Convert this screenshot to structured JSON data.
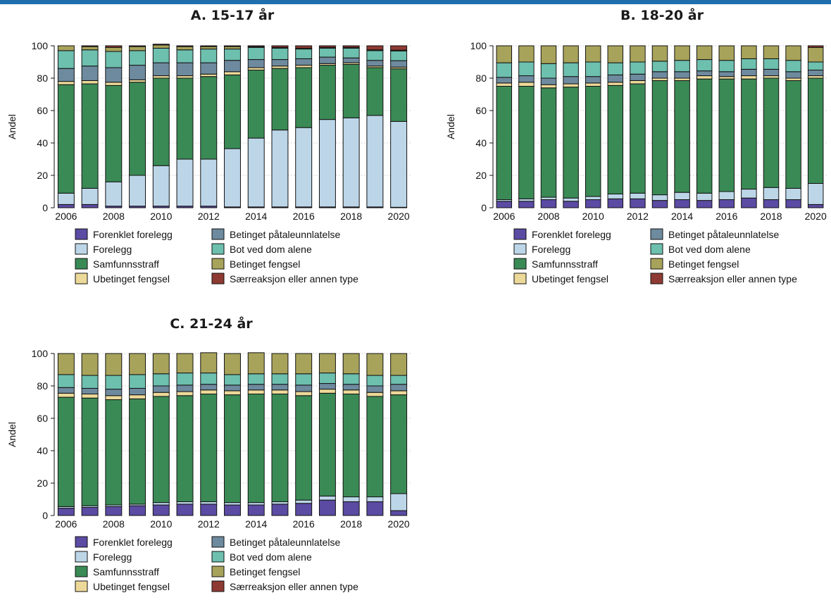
{
  "colors": {
    "topbar": "#1f6fae",
    "series": [
      "#5b4ba3",
      "#bcd6e8",
      "#3a8a55",
      "#ecd999",
      "#6e8a9e",
      "#6dbfae",
      "#a8a35a",
      "#8e3a32"
    ]
  },
  "legend_labels": [
    "Forenklet forelegg",
    "Betinget påtaleunnlatelse",
    "Forelegg",
    "Bot ved dom alene",
    "Samfunnsstraff",
    "Betinget fengsel",
    "Ubetinget fengsel",
    "Særreaksjon eller annen type"
  ],
  "chart_data": [
    {
      "type": "bar",
      "stacked": true,
      "title": "A. 15-17 år",
      "ylabel": "Andel",
      "ylim": [
        0,
        100
      ],
      "yticks": [
        "0",
        "20",
        "40",
        "60",
        "80",
        "100"
      ],
      "xtick_labels": [
        "2006",
        "2008",
        "2010",
        "2012",
        "2014",
        "2016",
        "2018",
        "2020"
      ],
      "grid": "horizontal dotted",
      "categories": [
        2006,
        2007,
        2008,
        2009,
        2010,
        2011,
        2012,
        2013,
        2014,
        2015,
        2016,
        2017,
        2018,
        2019,
        2020
      ],
      "series": [
        {
          "name": "Forenklet forelegg",
          "values": [
            2,
            2,
            1,
            1,
            1,
            1,
            1,
            0.5,
            0.5,
            0.5,
            0.5,
            0.5,
            0.5,
            0.5,
            0.3
          ]
        },
        {
          "name": "Betinget påtaleunnlatelse",
          "values": [
            7,
            10,
            15,
            19,
            25,
            29,
            29,
            36,
            42.5,
            47.5,
            49,
            54,
            55,
            56.5,
            53
          ]
        },
        {
          "name": "Forelegg",
          "values": [
            67,
            64.5,
            59.5,
            57.5,
            54,
            50,
            51,
            45.5,
            42,
            38,
            37,
            33.5,
            33,
            29.5,
            32.5
          ]
        },
        {
          "name": "Bot ved dom alene",
          "values": [
            2,
            2,
            2,
            1.5,
            1.5,
            1.5,
            1.5,
            2,
            1.5,
            1.5,
            1.5,
            1,
            1,
            1,
            1
          ]
        },
        {
          "name": "Samfunnsstraff",
          "values": [
            8,
            9,
            9,
            9,
            8,
            8,
            7,
            7,
            5,
            4,
            4,
            4,
            3,
            3.5,
            4
          ]
        },
        {
          "name": "Betinget fengsel",
          "values": [
            11,
            10,
            10,
            9,
            9,
            8,
            8.5,
            7,
            7.5,
            7,
            6,
            5.5,
            6,
            6,
            6
          ]
        },
        {
          "name": "Ubetinget fengsel",
          "values": [
            3,
            2,
            2.5,
            2.5,
            2,
            2,
            1.5,
            1.5,
            0.5,
            0.5,
            0.5,
            0.5,
            0.5,
            0.5,
            0.5
          ]
        },
        {
          "name": "Særreaksjon eller annen type",
          "values": [
            0,
            0.5,
            1,
            0.5,
            0.5,
            0.5,
            0.5,
            0.5,
            0.5,
            1,
            1.5,
            1,
            1,
            2.5,
            2.7
          ]
        }
      ]
    },
    {
      "type": "bar",
      "stacked": true,
      "title": "B. 18-20 år",
      "ylabel": "Andel",
      "ylim": [
        0,
        100
      ],
      "yticks": [
        "0",
        "20",
        "40",
        "60",
        "80",
        "100"
      ],
      "xtick_labels": [
        "2006",
        "2008",
        "2010",
        "2012",
        "2014",
        "2016",
        "2018",
        "2020"
      ],
      "grid": "horizontal dotted",
      "categories": [
        2006,
        2007,
        2008,
        2009,
        2010,
        2011,
        2012,
        2013,
        2014,
        2015,
        2016,
        2017,
        2018,
        2019,
        2020
      ],
      "series": [
        {
          "name": "Forenklet forelegg",
          "values": [
            4,
            4,
            5,
            4,
            5,
            5.5,
            5.5,
            4.5,
            5,
            4.5,
            5,
            6,
            5,
            5,
            2
          ]
        },
        {
          "name": "Betinget påtaleunnlatelse",
          "values": [
            1,
            1.5,
            1.5,
            2,
            2,
            3,
            3.5,
            3.5,
            4.5,
            4.5,
            5,
            5.5,
            7.5,
            7,
            13
          ]
        },
        {
          "name": "Forelegg",
          "values": [
            70,
            69.5,
            67.5,
            68.5,
            68,
            67,
            67.5,
            70.5,
            69,
            70.5,
            69.5,
            68,
            67.5,
            66.5,
            65
          ]
        },
        {
          "name": "Bot ved dom alene",
          "values": [
            2,
            2.5,
            2,
            2,
            2,
            2,
            2,
            1.5,
            1.5,
            2,
            1.5,
            2,
            1.5,
            1.5,
            1.5
          ]
        },
        {
          "name": "Samfunnsstraff",
          "values": [
            3.5,
            4,
            4,
            4.5,
            4,
            4.5,
            4,
            4,
            4,
            3,
            3,
            4,
            4,
            4,
            3.5
          ]
        },
        {
          "name": "Betinget fengsel",
          "values": [
            9,
            8.5,
            9,
            8.5,
            9,
            7.5,
            7.5,
            6.5,
            7,
            7,
            7,
            6.5,
            6.5,
            7,
            5
          ]
        },
        {
          "name": "Ubetinget fengsel",
          "values": [
            10.5,
            10,
            11,
            10.5,
            10,
            10.5,
            10,
            9.5,
            9,
            8.5,
            9,
            8,
            8,
            9,
            9
          ]
        },
        {
          "name": "Særreaksjon eller annen type",
          "values": [
            0,
            0,
            0,
            0,
            0,
            0,
            0,
            0,
            0,
            0,
            0,
            0,
            0,
            0,
            1
          ]
        }
      ]
    },
    {
      "type": "bar",
      "stacked": true,
      "title": "C. 21-24 år",
      "ylabel": "Andel",
      "ylim": [
        0,
        100
      ],
      "yticks": [
        "0",
        "20",
        "40",
        "60",
        "80",
        "100"
      ],
      "xtick_labels": [
        "2006",
        "2008",
        "2010",
        "2012",
        "2014",
        "2016",
        "2018",
        "2020"
      ],
      "grid": "horizontal dotted",
      "categories": [
        2006,
        2007,
        2008,
        2009,
        2010,
        2011,
        2012,
        2013,
        2014,
        2015,
        2016,
        2017,
        2018,
        2019,
        2020
      ],
      "series": [
        {
          "name": "Forenklet forelegg",
          "values": [
            4.5,
            5,
            5.5,
            6,
            6.5,
            7,
            7,
            6.5,
            6.5,
            7,
            7.5,
            9.5,
            8.5,
            8.5,
            3
          ]
        },
        {
          "name": "Betinget påtaleunnlatelse",
          "values": [
            1,
            1,
            1,
            1,
            1.5,
            1.5,
            1.5,
            1.5,
            1.5,
            1.5,
            2,
            2.5,
            3,
            3,
            10.5
          ]
        },
        {
          "name": "Forelegg",
          "values": [
            67.5,
            66.5,
            65,
            65,
            65.5,
            65.5,
            66.5,
            66.5,
            67,
            66.5,
            64.5,
            63.5,
            63.5,
            62,
            61
          ]
        },
        {
          "name": "Bot ved dom alene",
          "values": [
            2.5,
            2.5,
            2.5,
            2.5,
            2.5,
            2.5,
            2.5,
            2.5,
            2.5,
            2.5,
            2.5,
            2.5,
            2.5,
            2.5,
            2.5
          ]
        },
        {
          "name": "Samfunnsstraff",
          "values": [
            3.5,
            3.5,
            4,
            4,
            4,
            4,
            3.5,
            3.5,
            3.5,
            3.5,
            4,
            3.5,
            3.5,
            4,
            4
          ]
        },
        {
          "name": "Betinget fengsel",
          "values": [
            8,
            8,
            8.5,
            8.5,
            7.5,
            7.5,
            7,
            6.5,
            6.5,
            6.5,
            7,
            6.5,
            6.5,
            6.5,
            5.5
          ]
        },
        {
          "name": "Ubetinget fengsel",
          "values": [
            13,
            13.5,
            13.5,
            13,
            12.5,
            12,
            12.5,
            13,
            13,
            12.5,
            12.5,
            12,
            12.5,
            13.5,
            13.5
          ]
        },
        {
          "name": "Særreaksjon eller annen type",
          "values": [
            0,
            0,
            0,
            0,
            0,
            0,
            0,
            0,
            0,
            0,
            0,
            0,
            0,
            0,
            0
          ]
        }
      ]
    }
  ]
}
